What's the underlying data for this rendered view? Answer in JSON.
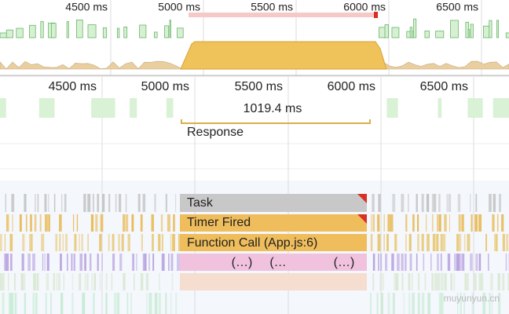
{
  "overview": {
    "ticks": [
      "4500 ms",
      "5000 ms",
      "5500 ms",
      "6000 ms",
      "6500 ms"
    ]
  },
  "ruler": {
    "ticks": [
      "4500 ms",
      "5000 ms",
      "5500 ms",
      "6000 ms",
      "6500 ms"
    ]
  },
  "interaction": {
    "duration": "1019.4 ms",
    "label": "Response"
  },
  "flame": {
    "rows": [
      "Task",
      "Timer Fired",
      "Function Call (App.js:6)"
    ],
    "calls": [
      "(…)",
      "(…",
      "(…)"
    ]
  },
  "watermark": "muyunyun.cn"
}
